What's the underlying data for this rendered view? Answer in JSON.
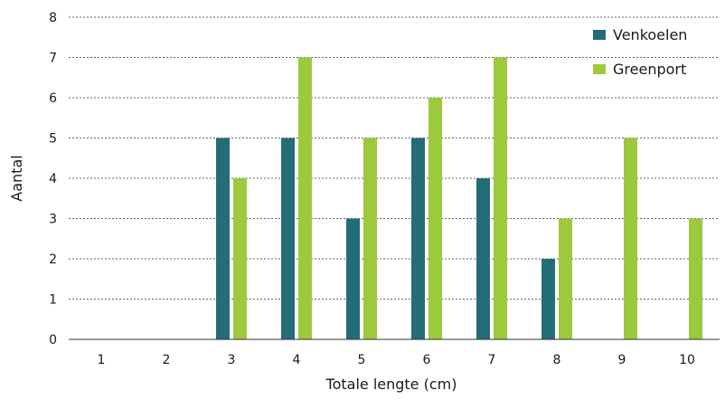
{
  "chart_data": {
    "type": "bar",
    "title": "",
    "xlabel": "Totale lengte (cm)",
    "ylabel": "Aantal",
    "categories": [
      "1",
      "2",
      "3",
      "4",
      "5",
      "6",
      "7",
      "8",
      "9",
      "10"
    ],
    "ylim": [
      0,
      8
    ],
    "yticks": [
      "0",
      "1",
      "2",
      "3",
      "4",
      "5",
      "6",
      "7",
      "8"
    ],
    "grid": "horizontal-dashed",
    "legend_position": "top-right",
    "series": [
      {
        "name": "Venkoelen",
        "color": "#246c78",
        "values": [
          0,
          0,
          5,
          5,
          3,
          5,
          4,
          2,
          0,
          0
        ]
      },
      {
        "name": "Greenport",
        "color": "#9dc93c",
        "values": [
          0,
          0,
          4,
          7,
          5,
          6,
          7,
          3,
          5,
          3
        ]
      }
    ]
  }
}
